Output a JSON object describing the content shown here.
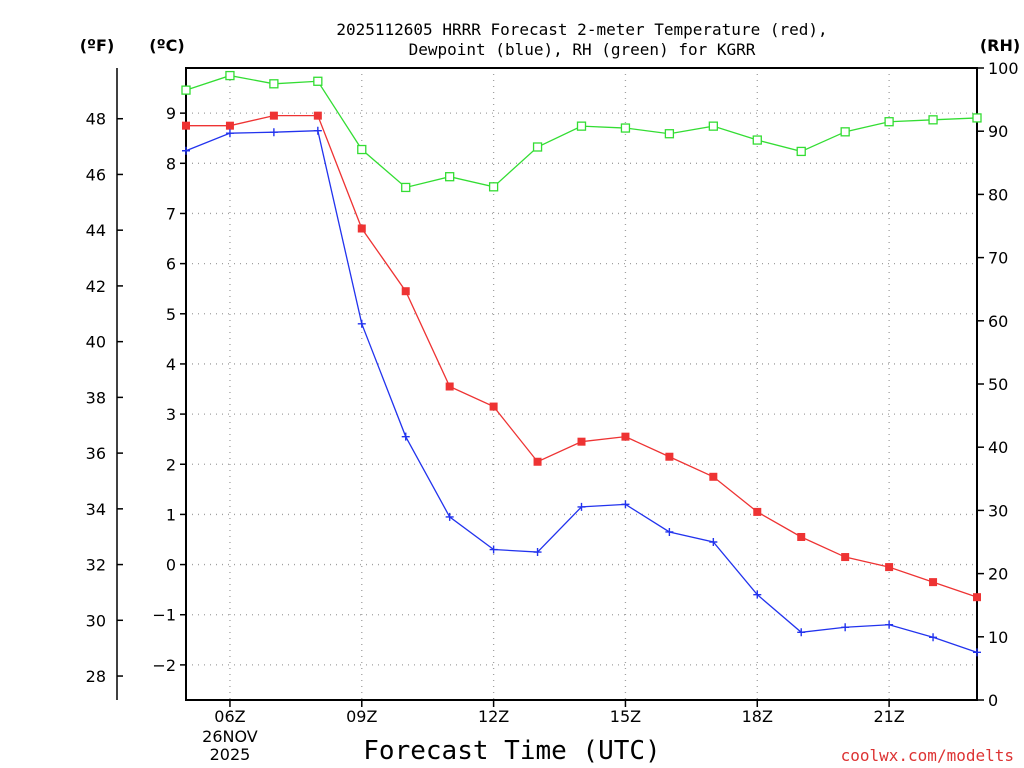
{
  "chart_data": {
    "type": "line",
    "title": {
      "line1": "2025112605 HRRR Forecast 2-meter Temperature (red),",
      "line2": "Dewpoint (blue), RH (green) for KGRR"
    },
    "xlabel": "Forecast Time (UTC)",
    "credit": "coolwx.com/modelts",
    "units": {
      "fahrenheit": "(ºF)",
      "celsius": "(ºC)",
      "rh": "(RH)"
    },
    "x_hours": [
      5,
      6,
      7,
      8,
      9,
      10,
      11,
      12,
      13,
      14,
      15,
      16,
      17,
      18,
      19,
      20,
      21,
      22,
      23
    ],
    "xlim": [
      5,
      23
    ],
    "x_ticks": [
      {
        "hour": 6,
        "label": "06Z",
        "sub": [
          "26NOV",
          "2025"
        ]
      },
      {
        "hour": 9,
        "label": "09Z",
        "sub": []
      },
      {
        "hour": 12,
        "label": "12Z",
        "sub": []
      },
      {
        "hour": 15,
        "label": "15Z",
        "sub": []
      },
      {
        "hour": 18,
        "label": "18Z",
        "sub": []
      },
      {
        "hour": 21,
        "label": "21Z",
        "sub": []
      }
    ],
    "celsius_ticks": [
      "9",
      "8",
      "7",
      "6",
      "5",
      "4",
      "3",
      "2",
      "1",
      "0",
      "−1",
      "−2"
    ],
    "celsius_tick_values": [
      9,
      8,
      7,
      6,
      5,
      4,
      3,
      2,
      1,
      0,
      -1,
      -2
    ],
    "ylim_celsius": [
      -2.7,
      9.9
    ],
    "fahrenheit_ticks": [
      "48",
      "46",
      "44",
      "42",
      "40",
      "38",
      "36",
      "34",
      "32",
      "30",
      "28"
    ],
    "fahrenheit_tick_values": [
      48,
      46,
      44,
      42,
      40,
      38,
      36,
      34,
      32,
      30,
      28
    ],
    "rh_ticks": [
      "100",
      "90",
      "80",
      "70",
      "60",
      "50",
      "40",
      "30",
      "20",
      "10",
      "0"
    ],
    "rh_tick_values": [
      100,
      90,
      80,
      70,
      60,
      50,
      40,
      30,
      20,
      10,
      0
    ],
    "ylim_rh": [
      0,
      100
    ],
    "grid": true,
    "series": [
      {
        "name": "Temperature",
        "axis": "celsius",
        "color": "#ee3333",
        "marker": "filled-square",
        "values": [
          8.75,
          8.75,
          8.95,
          8.95,
          6.7,
          5.45,
          3.55,
          3.15,
          2.05,
          2.45,
          2.55,
          2.15,
          1.75,
          1.05,
          0.55,
          0.15,
          -0.05,
          -0.35,
          -0.65
        ]
      },
      {
        "name": "Dewpoint",
        "axis": "celsius",
        "color": "#2233ee",
        "marker": "plus",
        "values": [
          8.25,
          8.6,
          8.62,
          8.65,
          4.8,
          2.55,
          0.95,
          0.3,
          0.25,
          1.15,
          1.2,
          0.65,
          0.45,
          -0.6,
          -1.35,
          -1.25,
          -1.2,
          -1.45,
          -1.75
        ]
      },
      {
        "name": "RH",
        "axis": "rh",
        "color": "#33dd33",
        "marker": "open-square",
        "values": [
          96.5,
          98.8,
          97.5,
          97.9,
          87.1,
          81.1,
          82.8,
          81.2,
          87.5,
          90.8,
          90.5,
          89.6,
          90.8,
          88.6,
          86.8,
          89.9,
          91.5,
          91.8,
          92.1
        ]
      }
    ]
  }
}
